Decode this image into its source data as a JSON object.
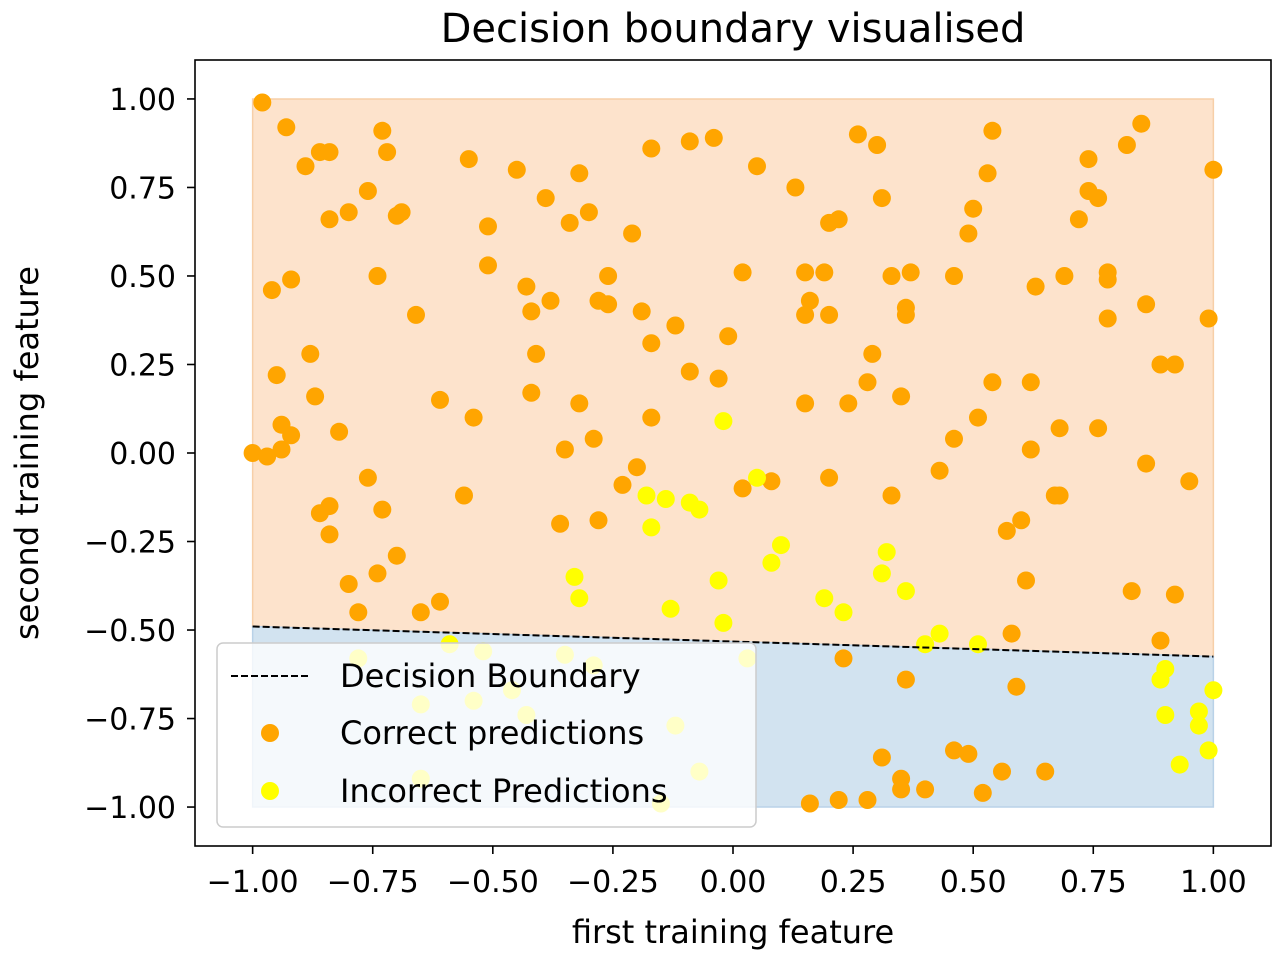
{
  "chart_data": {
    "type": "scatter",
    "title": "Decision boundary visualised",
    "xlabel": "first training feature",
    "ylabel": "second training feature",
    "xlim": [
      -1.12,
      1.12
    ],
    "ylim": [
      -1.11,
      1.11
    ],
    "xticks": [
      -1.0,
      -0.75,
      -0.5,
      -0.25,
      0.0,
      0.25,
      0.5,
      0.75,
      1.0
    ],
    "yticks": [
      -1.0,
      -0.75,
      -0.5,
      -0.25,
      0.0,
      0.25,
      0.5,
      0.75,
      1.0
    ],
    "xtick_labels": [
      "−1.00",
      "−0.75",
      "−0.50",
      "−0.25",
      "0.00",
      "0.25",
      "0.50",
      "0.75",
      "1.00"
    ],
    "ytick_labels": [
      "−1.00",
      "−0.75",
      "−0.50",
      "−0.25",
      "0.00",
      "0.25",
      "0.50",
      "0.75",
      "1.00"
    ],
    "grid": false,
    "legend_position": "lower-left",
    "regions": [
      {
        "name": "class-positive-region",
        "x": [
          -1.0,
          1.0
        ],
        "y_top": 1.0,
        "color": "#fde3cc"
      },
      {
        "name": "class-negative-region",
        "x": [
          -1.0,
          1.0
        ],
        "y_bottom": -1.0,
        "color": "#d2e3f0"
      }
    ],
    "boundary": {
      "name": "Decision Boundary",
      "x": [
        -1.0,
        1.0
      ],
      "y": [
        -0.49,
        -0.575
      ],
      "style": "dashed",
      "color": "#000000"
    },
    "series": [
      {
        "name": "Correct predictions",
        "color": "#ffa500",
        "points": [
          [
            -0.98,
            0.99
          ],
          [
            -0.93,
            0.92
          ],
          [
            -0.86,
            0.85
          ],
          [
            -0.84,
            0.85
          ],
          [
            -0.89,
            0.81
          ],
          [
            -0.73,
            0.91
          ],
          [
            -0.72,
            0.85
          ],
          [
            -0.76,
            0.74
          ],
          [
            -0.84,
            0.66
          ],
          [
            -0.8,
            0.68
          ],
          [
            -0.7,
            0.67
          ],
          [
            -0.69,
            0.68
          ],
          [
            -0.96,
            0.46
          ],
          [
            -0.92,
            0.49
          ],
          [
            -0.74,
            0.5
          ],
          [
            -0.66,
            0.39
          ],
          [
            -0.88,
            0.28
          ],
          [
            -0.95,
            0.22
          ],
          [
            -0.94,
            0.08
          ],
          [
            -0.92,
            0.05
          ],
          [
            -0.94,
            0.01
          ],
          [
            -1.0,
            0.0
          ],
          [
            -0.97,
            -0.01
          ],
          [
            -0.87,
            0.16
          ],
          [
            -0.82,
            0.06
          ],
          [
            -0.76,
            -0.07
          ],
          [
            -0.73,
            -0.16
          ],
          [
            -0.7,
            -0.29
          ],
          [
            -0.84,
            -0.15
          ],
          [
            -0.86,
            -0.17
          ],
          [
            -0.84,
            -0.23
          ],
          [
            -0.8,
            -0.37
          ],
          [
            -0.74,
            -0.34
          ],
          [
            -0.78,
            -0.45
          ],
          [
            -0.65,
            -0.45
          ],
          [
            -0.61,
            -0.42
          ],
          [
            -0.61,
            0.15
          ],
          [
            -0.55,
            0.83
          ],
          [
            -0.45,
            0.8
          ],
          [
            -0.51,
            0.64
          ],
          [
            -0.51,
            0.53
          ],
          [
            -0.43,
            0.47
          ],
          [
            -0.42,
            0.4
          ],
          [
            -0.38,
            0.43
          ],
          [
            -0.41,
            0.28
          ],
          [
            -0.42,
            0.17
          ],
          [
            -0.54,
            0.1
          ],
          [
            -0.56,
            -0.12
          ],
          [
            -0.39,
            0.72
          ],
          [
            -0.34,
            0.65
          ],
          [
            -0.32,
            0.79
          ],
          [
            -0.3,
            0.68
          ],
          [
            -0.26,
            0.5
          ],
          [
            -0.28,
            0.43
          ],
          [
            -0.26,
            0.42
          ],
          [
            -0.19,
            0.4
          ],
          [
            -0.21,
            0.62
          ],
          [
            -0.17,
            0.86
          ],
          [
            -0.17,
            0.31
          ],
          [
            -0.17,
            0.1
          ],
          [
            -0.12,
            0.36
          ],
          [
            -0.09,
            0.88
          ],
          [
            -0.04,
            0.89
          ],
          [
            -0.09,
            0.23
          ],
          [
            -0.03,
            0.21
          ],
          [
            -0.01,
            0.33
          ],
          [
            -0.32,
            0.14
          ],
          [
            -0.35,
            0.01
          ],
          [
            -0.29,
            0.04
          ],
          [
            -0.2,
            -0.04
          ],
          [
            -0.23,
            -0.09
          ],
          [
            -0.36,
            -0.2
          ],
          [
            -0.28,
            -0.19
          ],
          [
            0.05,
            0.81
          ],
          [
            0.13,
            0.75
          ],
          [
            0.02,
            0.51
          ],
          [
            0.15,
            0.51
          ],
          [
            0.16,
            0.43
          ],
          [
            0.15,
            0.39
          ],
          [
            0.19,
            0.51
          ],
          [
            0.2,
            0.39
          ],
          [
            0.2,
            0.65
          ],
          [
            0.22,
            0.66
          ],
          [
            0.26,
            0.9
          ],
          [
            0.3,
            0.87
          ],
          [
            0.31,
            0.72
          ],
          [
            0.29,
            0.28
          ],
          [
            0.28,
            0.2
          ],
          [
            0.24,
            0.14
          ],
          [
            0.15,
            0.14
          ],
          [
            0.33,
            0.5
          ],
          [
            0.37,
            0.51
          ],
          [
            0.36,
            0.41
          ],
          [
            0.36,
            0.39
          ],
          [
            0.35,
            0.16
          ],
          [
            0.02,
            -0.1
          ],
          [
            0.08,
            -0.08
          ],
          [
            0.2,
            -0.07
          ],
          [
            0.33,
            -0.12
          ],
          [
            0.46,
            0.5
          ],
          [
            0.49,
            0.62
          ],
          [
            0.5,
            0.69
          ],
          [
            0.54,
            0.91
          ],
          [
            0.53,
            0.79
          ],
          [
            0.54,
            0.2
          ],
          [
            0.51,
            0.1
          ],
          [
            0.46,
            0.04
          ],
          [
            0.43,
            -0.05
          ],
          [
            0.57,
            -0.22
          ],
          [
            0.6,
            -0.19
          ],
          [
            0.61,
            -0.36
          ],
          [
            0.58,
            -0.51
          ],
          [
            0.59,
            -0.66
          ],
          [
            0.63,
            0.47
          ],
          [
            0.62,
            0.2
          ],
          [
            0.62,
            0.01
          ],
          [
            0.68,
            0.07
          ],
          [
            0.69,
            0.5
          ],
          [
            0.72,
            0.66
          ],
          [
            0.74,
            0.83
          ],
          [
            0.74,
            0.74
          ],
          [
            0.76,
            0.72
          ],
          [
            0.78,
            0.51
          ],
          [
            0.78,
            0.49
          ],
          [
            0.78,
            0.38
          ],
          [
            0.76,
            0.07
          ],
          [
            0.67,
            -0.12
          ],
          [
            0.68,
            -0.12
          ],
          [
            0.82,
            0.87
          ],
          [
            0.85,
            0.93
          ],
          [
            0.86,
            0.42
          ],
          [
            0.89,
            0.25
          ],
          [
            0.92,
            0.25
          ],
          [
            0.86,
            -0.03
          ],
          [
            0.95,
            -0.08
          ],
          [
            0.92,
            -0.4
          ],
          [
            0.83,
            -0.39
          ],
          [
            0.89,
            -0.53
          ],
          [
            0.99,
            0.38
          ],
          [
            1.0,
            0.8
          ],
          [
            0.23,
            -0.58
          ],
          [
            0.36,
            -0.64
          ],
          [
            0.31,
            -0.86
          ],
          [
            0.35,
            -0.92
          ],
          [
            0.35,
            -0.95
          ],
          [
            0.4,
            -0.95
          ],
          [
            0.46,
            -0.84
          ],
          [
            0.49,
            -0.85
          ],
          [
            0.52,
            -0.96
          ],
          [
            0.56,
            -0.9
          ],
          [
            0.65,
            -0.9
          ],
          [
            0.16,
            -0.99
          ],
          [
            0.22,
            -0.98
          ],
          [
            0.28,
            -0.98
          ]
        ]
      },
      {
        "name": "Incorrect Predictions",
        "color": "#ffff00",
        "points": [
          [
            -0.02,
            0.09
          ],
          [
            0.05,
            -0.07
          ],
          [
            -0.18,
            -0.12
          ],
          [
            -0.14,
            -0.13
          ],
          [
            -0.09,
            -0.14
          ],
          [
            -0.07,
            -0.16
          ],
          [
            -0.17,
            -0.21
          ],
          [
            0.1,
            -0.26
          ],
          [
            0.08,
            -0.31
          ],
          [
            -0.33,
            -0.35
          ],
          [
            -0.32,
            -0.41
          ],
          [
            -0.13,
            -0.44
          ],
          [
            -0.03,
            -0.36
          ],
          [
            -0.02,
            -0.48
          ],
          [
            0.19,
            -0.41
          ],
          [
            0.23,
            -0.45
          ],
          [
            0.32,
            -0.28
          ],
          [
            0.31,
            -0.34
          ],
          [
            0.36,
            -0.39
          ],
          [
            0.43,
            -0.51
          ],
          [
            0.4,
            -0.54
          ],
          [
            0.51,
            -0.54
          ],
          [
            -0.59,
            -0.54
          ],
          [
            -0.78,
            -0.58
          ],
          [
            -0.52,
            -0.56
          ],
          [
            -0.35,
            -0.57
          ],
          [
            -0.29,
            -0.6
          ],
          [
            0.03,
            -0.58
          ],
          [
            -0.46,
            -0.67
          ],
          [
            -0.54,
            -0.7
          ],
          [
            -0.65,
            -0.71
          ],
          [
            -0.43,
            -0.74
          ],
          [
            -0.12,
            -0.77
          ],
          [
            -0.65,
            -0.92
          ],
          [
            -0.07,
            -0.9
          ],
          [
            -0.15,
            -0.99
          ],
          [
            0.9,
            -0.61
          ],
          [
            0.89,
            -0.64
          ],
          [
            0.9,
            -0.74
          ],
          [
            0.97,
            -0.73
          ],
          [
            0.97,
            -0.77
          ],
          [
            1.0,
            -0.67
          ],
          [
            0.99,
            -0.84
          ],
          [
            0.93,
            -0.88
          ]
        ]
      }
    ]
  }
}
